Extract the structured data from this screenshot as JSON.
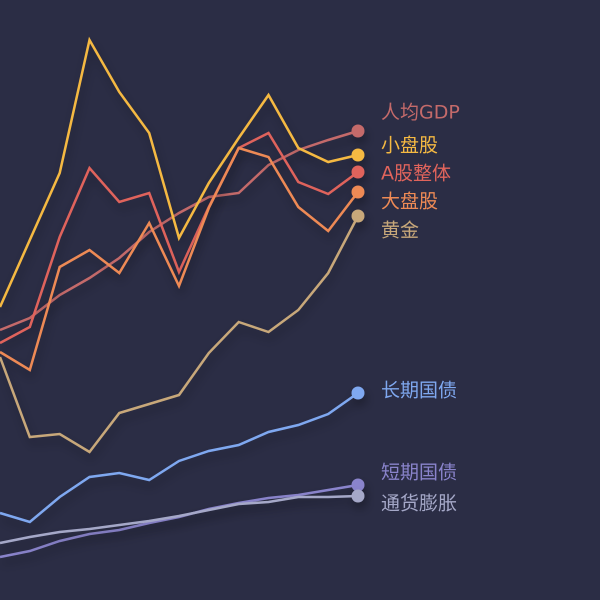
{
  "chart_data": {
    "type": "line",
    "title": "",
    "xlabel": "",
    "ylabel": "",
    "note": "No axes shown; values are relative index levels estimated from line positions",
    "x": [
      0,
      1,
      2,
      3,
      4,
      5,
      6,
      7,
      8,
      9,
      10,
      11,
      12
    ],
    "ylim": [
      0,
      150
    ],
    "grid": false,
    "legend": "end-of-line labels, right",
    "series": [
      {
        "name": "人均GDP",
        "color": "#c46a6a",
        "values": [
          67.5,
          70.5,
          76.25,
          80.5,
          85.5,
          92,
          96.75,
          100.75,
          101.75,
          108.75,
          112.5,
          115,
          117.25
        ]
      },
      {
        "name": "小盘股",
        "color": "#f5b942",
        "values": [
          73.25,
          90,
          106.75,
          140,
          127,
          116.75,
          90.5,
          104.25,
          115.5,
          126.25,
          113,
          109.5,
          111.25
        ]
      },
      {
        "name": "A股整体",
        "color": "#e0645c",
        "values": [
          64.25,
          68.25,
          90.75,
          108,
          99.5,
          101.75,
          82,
          98.25,
          113,
          116.75,
          104.5,
          101.5,
          107
        ]
      },
      {
        "name": "大盘股",
        "color": "#ee8a55",
        "values": [
          62,
          57.5,
          83.25,
          87.5,
          81.75,
          94.25,
          78.5,
          98,
          113,
          110.75,
          98.25,
          92.25,
          102
        ]
      },
      {
        "name": "黄金",
        "color": "#c8a87a",
        "values": [
          60.75,
          40.75,
          41.5,
          37,
          46.75,
          49,
          51.25,
          61.75,
          69.5,
          67,
          72.5,
          81.75,
          96
        ]
      },
      {
        "name": "长期国债",
        "color": "#7fa8f0",
        "values": [
          21.75,
          19.5,
          25.75,
          30.75,
          31.75,
          30,
          34.75,
          37.25,
          38.75,
          42,
          43.75,
          46.5,
          51.75
        ]
      },
      {
        "name": "短期国债",
        "color": "#8a84cc",
        "values": [
          10.75,
          12.25,
          14.75,
          16.5,
          17.5,
          19.25,
          20.75,
          22.75,
          24.25,
          25.5,
          26.25,
          27.5,
          28.75
        ]
      },
      {
        "name": "通货膨胀",
        "color": "#a5a8c8",
        "values": [
          14.25,
          15.75,
          17,
          17.75,
          18.75,
          19.75,
          21,
          22.5,
          24,
          24.5,
          25.75,
          25.75,
          26
        ]
      }
    ]
  }
}
